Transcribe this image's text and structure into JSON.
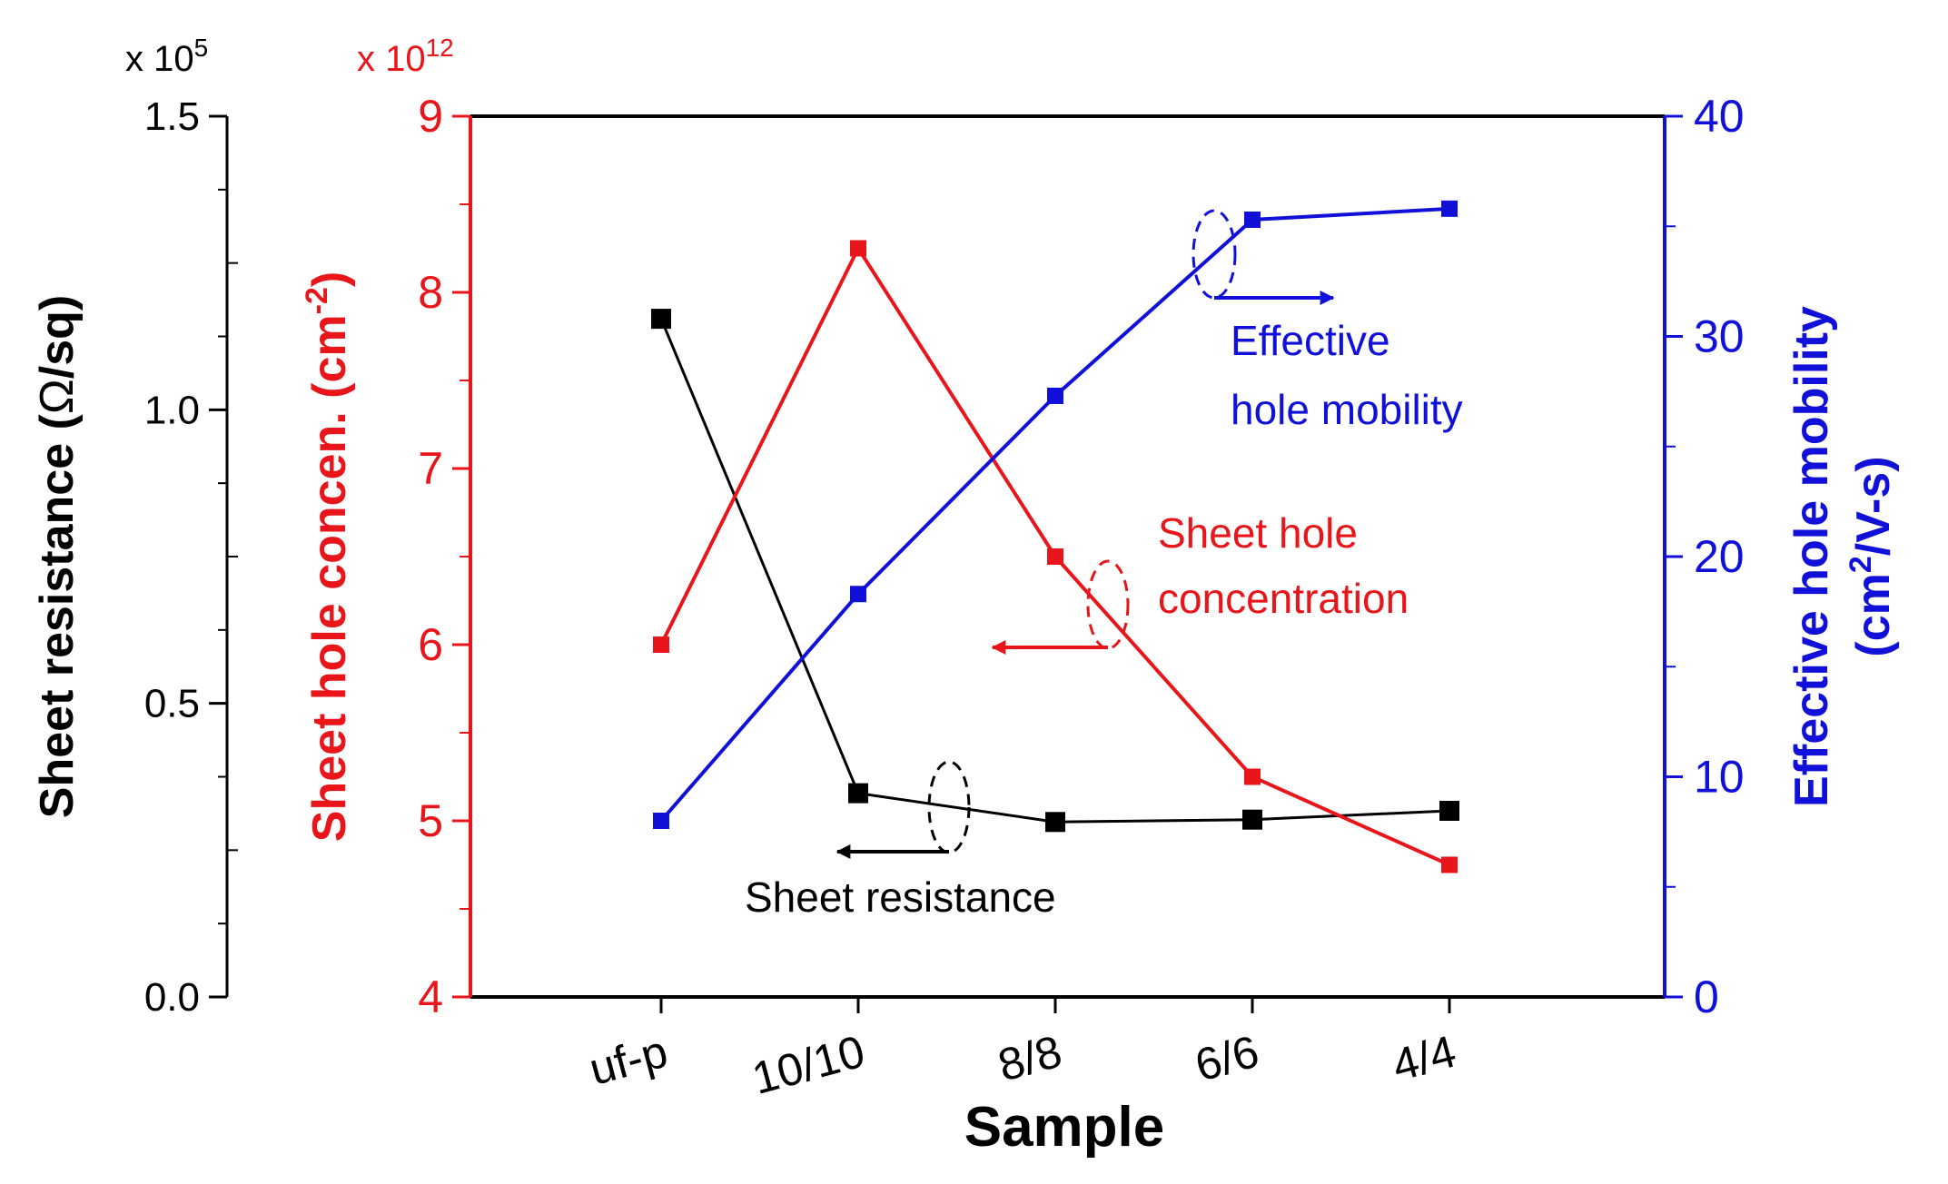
{
  "chart_data": {
    "type": "line",
    "xlabel": "Sample",
    "categories": [
      "uf-p",
      "10/10",
      "8/8",
      "6/6",
      "4/4"
    ],
    "axes": {
      "sheet_resistance": {
        "label_main": "Sheet resistance (",
        "label_omega": "Ω",
        "label_end": "/sq)",
        "multiplier_prefix": "x 10",
        "multiplier_exp": "5",
        "ylim": [
          0.0,
          1.5
        ],
        "ticks": [
          "0.0",
          "0.5",
          "1.0",
          "1.5"
        ],
        "color": "#000000"
      },
      "hole_concentration": {
        "label_main": "Sheet hole concen. (cm",
        "label_sup": "-2",
        "label_end": ")",
        "multiplier_prefix": "x 10",
        "multiplier_exp": "12",
        "ylim": [
          4,
          9
        ],
        "ticks": [
          "4",
          "5",
          "6",
          "7",
          "8",
          "9"
        ],
        "color": "#e8161b"
      },
      "mobility": {
        "label_line1": "Effective hole mobility",
        "label_line2_main": "(cm",
        "label_line2_sup": "2",
        "label_line2_end": "/V-s)",
        "ylim": [
          0,
          40
        ],
        "ticks": [
          "0",
          "10",
          "20",
          "30",
          "40"
        ],
        "color": "#1010d8"
      }
    },
    "series": [
      {
        "name": "Sheet resistance",
        "axis": "sheet_resistance",
        "color": "#000000",
        "values": [
          1.155,
          0.347,
          0.298,
          0.302,
          0.317
        ]
      },
      {
        "name": "Sheet hole concentration",
        "axis": "hole_concentration",
        "color": "#e8161b",
        "values": [
          6.0,
          8.25,
          6.5,
          5.25,
          4.75
        ]
      },
      {
        "name": "Effective hole mobility",
        "axis": "mobility",
        "color": "#1010d8",
        "values": [
          8.0,
          18.3,
          27.3,
          35.3,
          35.8
        ]
      }
    ],
    "annotations": {
      "resistance": "Sheet resistance",
      "concentration_line1": "Sheet hole",
      "concentration_line2": "concentration",
      "mobility_line1": "Effective",
      "mobility_line2": "hole mobility"
    }
  }
}
